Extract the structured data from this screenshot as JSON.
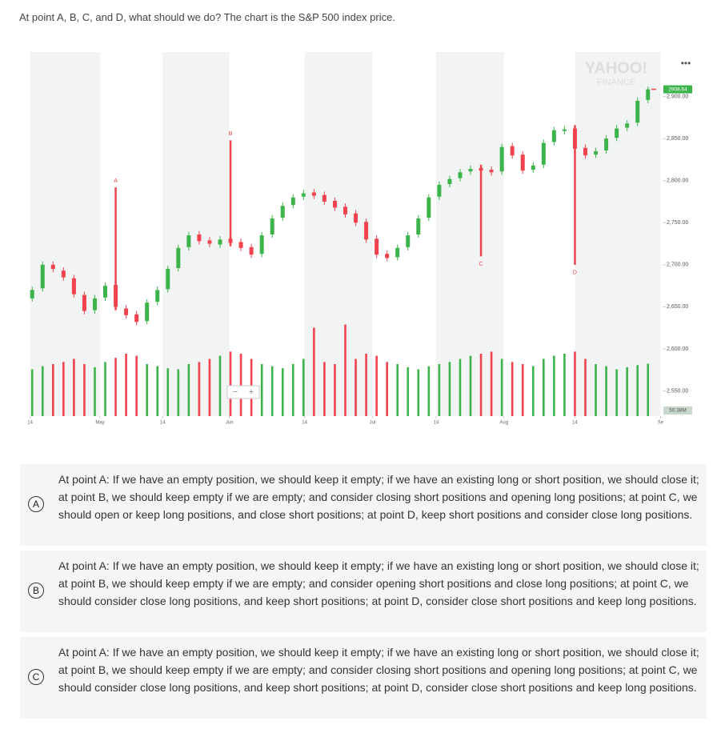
{
  "question": "At point A, B, C, and D, what should we do? The chart is the S&P 500 index price.",
  "chart_data": {
    "type": "candlestick",
    "watermark": [
      "YAHOO!",
      "FINANCE"
    ],
    "xlim": [
      -0.4,
      60.4
    ],
    "xticks": [
      {
        "value": -0.2,
        "label": "14"
      },
      {
        "value": 6.5,
        "label": "May"
      },
      {
        "value": 12.5,
        "label": "14"
      },
      {
        "value": 18.9,
        "label": "Jun"
      },
      {
        "value": 26.1,
        "label": "14"
      },
      {
        "value": 32.6,
        "label": "Jul"
      },
      {
        "value": 38.7,
        "label": "14"
      },
      {
        "value": 45.2,
        "label": "Aug"
      },
      {
        "value": 52,
        "label": "14"
      },
      {
        "value": 60.2,
        "label": "Se"
      }
    ],
    "ylim": [
      2520,
      2953
    ],
    "yticks": [
      {
        "value": 2550,
        "label": "2,550.00"
      },
      {
        "value": 2600,
        "label": "2,600.00"
      },
      {
        "value": 2650,
        "label": "2,650.00"
      },
      {
        "value": 2700,
        "label": "2,700.00"
      },
      {
        "value": 2750,
        "label": "2,750.00"
      },
      {
        "value": 2800,
        "label": "2,800.00"
      },
      {
        "value": 2850,
        "label": "2,850.00"
      },
      {
        "value": 2900,
        "label": "2,900.00"
      }
    ],
    "up_color": "#3cb44b",
    "down_color": "#f0434d",
    "open": [
      2660,
      2672,
      2700,
      2693,
      2684,
      2664,
      2646,
      2661,
      2676,
      2648,
      2641,
      2633,
      2656,
      2671,
      2696,
      2721,
      2736,
      2729,
      2724,
      2731,
      2727,
      2721,
      2713,
      2736,
      2756,
      2771,
      2781,
      2786,
      2783,
      2776,
      2769,
      2761,
      2751,
      2731,
      2713,
      2709,
      2721,
      2736,
      2756,
      2781,
      2796,
      2803,
      2811,
      2815,
      2813,
      2811,
      2841,
      2831,
      2813,
      2819,
      2846,
      2859,
      2862,
      2839,
      2831,
      2836,
      2851,
      2863,
      2869,
      2896
    ],
    "close": [
      2670,
      2700,
      2695,
      2685,
      2665,
      2645,
      2660,
      2675,
      2650,
      2640,
      2632,
      2655,
      2670,
      2695,
      2720,
      2735,
      2728,
      2725,
      2730,
      2726,
      2720,
      2712,
      2735,
      2755,
      2770,
      2780,
      2785,
      2782,
      2775,
      2768,
      2760,
      2750,
      2730,
      2712,
      2708,
      2720,
      2735,
      2755,
      2780,
      2795,
      2802,
      2810,
      2814,
      2812,
      2810,
      2840,
      2830,
      2812,
      2818,
      2845,
      2860,
      2861,
      2838,
      2830,
      2835,
      2850,
      2862,
      2868,
      2895,
      2908.64
    ],
    "high": [
      2674,
      2704,
      2704,
      2697,
      2688,
      2668,
      2664,
      2679,
      2792,
      2652,
      2645,
      2659,
      2674,
      2699,
      2724,
      2739,
      2740,
      2733,
      2734,
      2848,
      2731,
      2725,
      2739,
      2759,
      2774,
      2784,
      2789,
      2790,
      2787,
      2780,
      2773,
      2765,
      2755,
      2735,
      2717,
      2724,
      2739,
      2759,
      2784,
      2799,
      2806,
      2814,
      2818,
      2819,
      2817,
      2844,
      2845,
      2835,
      2822,
      2849,
      2864,
      2865,
      2866,
      2843,
      2839,
      2854,
      2866,
      2872,
      2899,
      2912
    ],
    "low": [
      2656,
      2668,
      2691,
      2681,
      2661,
      2641,
      2642,
      2657,
      2646,
      2636,
      2628,
      2629,
      2652,
      2667,
      2692,
      2717,
      2724,
      2721,
      2720,
      2722,
      2716,
      2708,
      2709,
      2732,
      2752,
      2767,
      2777,
      2778,
      2771,
      2764,
      2756,
      2746,
      2726,
      2708,
      2704,
      2705,
      2717,
      2732,
      2752,
      2777,
      2792,
      2799,
      2807,
      2710,
      2806,
      2807,
      2826,
      2808,
      2809,
      2815,
      2842,
      2855,
      2700,
      2826,
      2827,
      2832,
      2847,
      2859,
      2865,
      2892
    ],
    "volume_ylim": [
      0,
      100
    ],
    "volume": [
      45,
      48,
      50,
      52,
      55,
      50,
      47,
      52,
      56,
      60,
      58,
      50,
      48,
      46,
      45,
      50,
      52,
      55,
      58,
      62,
      60,
      55,
      50,
      48,
      46,
      50,
      55,
      85,
      52,
      50,
      88,
      55,
      60,
      58,
      52,
      50,
      47,
      45,
      48,
      50,
      52,
      55,
      58,
      60,
      62,
      55,
      52,
      50,
      48,
      55,
      58,
      60,
      62,
      55,
      50,
      48,
      45,
      47,
      49,
      50.38
    ],
    "volume_last_label": "50.38M",
    "annotations": [
      "A",
      "B",
      "C",
      "D"
    ]
  },
  "options": [
    {
      "letter": "A",
      "text": "At point A: If we have an empty position, we should keep it empty; if we have an existing long or short position, we should close it; at point B, we should keep empty if we are empty; and consider closing short positions and opening long positions; at point C, we should open or keep long positions, and close short positions; at point D, keep short positions and consider close long positions."
    },
    {
      "letter": "B",
      "text": "At point A: If we have an empty position, we should keep it empty; if we have an existing long or short position, we should close it; at point B, we should keep empty if we are empty; and consider opening short positions and close long positions; at point C, we should consider close long positions, and keep short positions; at point D, consider close short positions and keep long positions."
    },
    {
      "letter": "C",
      "text": "At point A: If we have an empty position, we should keep it empty; if we have an existing long or short position, we should close it; at point B, we should keep empty if we are empty; and consider closing short positions and opening long positions; at point C, we should consider close long positions, and keep short positions; at point D, consider close short positions and keep long positions."
    }
  ]
}
